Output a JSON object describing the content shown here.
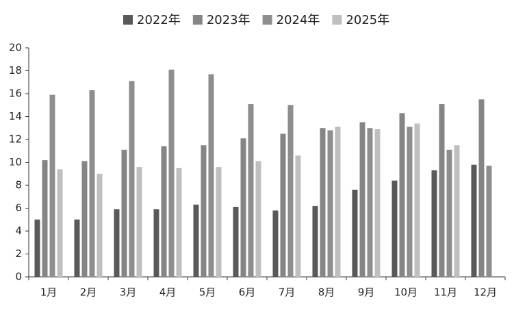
{
  "chart_data": {
    "type": "bar",
    "categories": [
      "1月",
      "2月",
      "3月",
      "4月",
      "5月",
      "6月",
      "7月",
      "8月",
      "9月",
      "10月",
      "11月",
      "12月"
    ],
    "series": [
      {
        "name": "2022年",
        "color": "#595959",
        "values": [
          5.0,
          5.0,
          5.9,
          5.9,
          6.3,
          6.1,
          5.8,
          6.2,
          7.6,
          8.4,
          9.3,
          9.8
        ]
      },
      {
        "name": "2023年",
        "color": "#858585",
        "values": [
          10.2,
          10.1,
          11.1,
          11.4,
          11.5,
          12.1,
          12.5,
          13.0,
          13.5,
          14.3,
          15.1,
          15.5
        ]
      },
      {
        "name": "2024年",
        "color": "#8e8e8e",
        "values": [
          15.9,
          16.3,
          17.1,
          18.1,
          17.7,
          15.1,
          15.0,
          12.8,
          13.0,
          13.1,
          11.1,
          9.7
        ]
      },
      {
        "name": "2025年",
        "color": "#bfbfbf",
        "values": [
          9.4,
          9.0,
          9.6,
          9.5,
          9.6,
          10.1,
          10.6,
          13.1,
          12.9,
          13.4,
          11.5,
          null
        ]
      }
    ],
    "ylim": [
      0,
      20
    ],
    "yticks": [
      0,
      2,
      4,
      6,
      8,
      10,
      12,
      14,
      16,
      18,
      20
    ],
    "grid": false,
    "legend": "top"
  }
}
